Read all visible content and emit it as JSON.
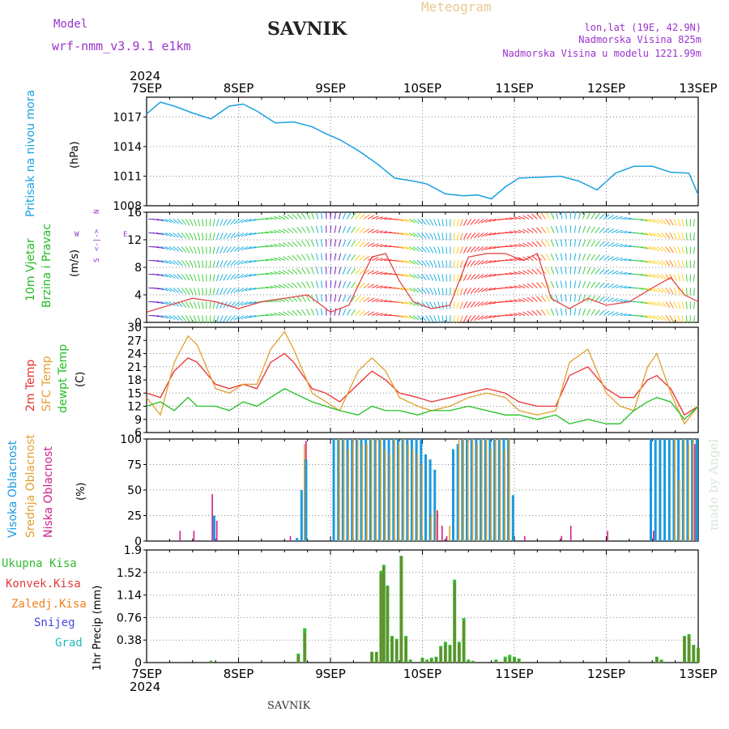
{
  "header": {
    "model_label": "Model",
    "model_name": "wrf-nmm_v3.9.1 e1km",
    "station": "SAVNIK",
    "product": "Meteogram",
    "lonlat": "lon,lat (19E, 42.9N)",
    "elevation": "Nadmorska Visina 825m",
    "model_elevation": "Nadmorska Visina u modelu 1221.99m",
    "year_top": "2024",
    "year_bottom": "2024",
    "footer_station": "SAVNIK",
    "credit": "made by Angel"
  },
  "colors": {
    "pressure": "#1aa0e0",
    "wind_label": "#22bb22",
    "temp2m": "#e83030",
    "sfc": "#e0a030",
    "dewpt": "#22c022",
    "cloud_high": "#1a9be0",
    "cloud_mid": "#e0a030",
    "cloud_low": "#d0208a",
    "total": "#33bb33",
    "conv": "#e03c3c",
    "frozen": "#f08020",
    "snow": "#4444dd",
    "grad": "#22bbbb",
    "accent": "#9933cc"
  },
  "x_axis_dates": [
    "7SEP",
    "8SEP",
    "9SEP",
    "10SEP",
    "11SEP",
    "12SEP",
    "13SEP"
  ],
  "chart_data": [
    {
      "type": "line",
      "title": "Pritisak na nivou mora",
      "ylabel": "(hPa)",
      "ylim": [
        1008,
        1019
      ],
      "yticks": [
        1008,
        1011,
        1014,
        1017
      ],
      "x_days": [
        0,
        0.15,
        0.3,
        0.5,
        0.7,
        0.9,
        1.05,
        1.2,
        1.4,
        1.6,
        1.8,
        1.95,
        2.1,
        2.3,
        2.5,
        2.7,
        2.9,
        3.05,
        3.25,
        3.45,
        3.6,
        3.75,
        3.9,
        4.05,
        4.3,
        4.5,
        4.7,
        4.9,
        5.1,
        5.3,
        5.5,
        5.7,
        5.9,
        6.0
      ],
      "series": [
        {
          "color_key": "pressure",
          "values": [
            1017.3,
            1018.5,
            1018.1,
            1017.4,
            1016.8,
            1018.1,
            1018.3,
            1017.6,
            1016.4,
            1016.5,
            1016.0,
            1015.3,
            1014.7,
            1013.6,
            1012.3,
            1010.8,
            1010.5,
            1010.2,
            1009.2,
            1009.0,
            1009.1,
            1008.7,
            1009.9,
            1010.8,
            1010.9,
            1011.0,
            1010.5,
            1009.6,
            1011.3,
            1012.0,
            1012.0,
            1011.4,
            1011.3,
            1009.1
          ]
        }
      ]
    },
    {
      "type": "line",
      "title": "10m Vjetar Brzina i Pravac",
      "ylabel": "(m/s)",
      "ylim": [
        0,
        16
      ],
      "yticks": [
        0,
        4,
        8,
        12,
        16
      ],
      "x_days": [
        0,
        0.25,
        0.5,
        0.75,
        1.0,
        1.25,
        1.5,
        1.75,
        2.0,
        2.2,
        2.45,
        2.6,
        2.75,
        2.9,
        3.1,
        3.3,
        3.5,
        3.7,
        3.9,
        4.1,
        4.25,
        4.4,
        4.6,
        4.8,
        5.0,
        5.25,
        5.5,
        5.7,
        5.85,
        6.0
      ],
      "series": [
        {
          "name": "Brzina",
          "color_key": "conv",
          "values": [
            1.5,
            2.5,
            3.5,
            3.0,
            2.0,
            3.0,
            3.5,
            4.0,
            1.5,
            2.5,
            9.5,
            10.0,
            6.0,
            3.0,
            2.0,
            2.5,
            9.5,
            10.0,
            10.0,
            9.0,
            10.0,
            3.5,
            2.0,
            3.5,
            2.5,
            3.0,
            5.0,
            6.5,
            4.0,
            3.0
          ]
        }
      ],
      "direction_legend": [
        "N",
        "W",
        "E",
        "S"
      ]
    },
    {
      "type": "line",
      "ylabel": "(C)",
      "ylim": [
        6,
        30
      ],
      "yticks": [
        6,
        9,
        12,
        15,
        18,
        21,
        24,
        27,
        30
      ],
      "x_days": [
        0,
        0.15,
        0.3,
        0.45,
        0.55,
        0.75,
        0.9,
        1.05,
        1.2,
        1.35,
        1.5,
        1.6,
        1.8,
        1.95,
        2.1,
        2.3,
        2.45,
        2.6,
        2.75,
        2.95,
        3.1,
        3.3,
        3.5,
        3.7,
        3.9,
        4.05,
        4.25,
        4.45,
        4.6,
        4.8,
        5.0,
        5.15,
        5.3,
        5.45,
        5.55,
        5.7,
        5.85,
        6.0
      ],
      "series": [
        {
          "name": "2m Temp",
          "color_key": "temp2m",
          "values": [
            15,
            14,
            20,
            23,
            22,
            17,
            16,
            17,
            16,
            22,
            24,
            22,
            16,
            15,
            13,
            17,
            20,
            18,
            15,
            14,
            13,
            14,
            15,
            16,
            15,
            13,
            12,
            12,
            19,
            21,
            16,
            14,
            14,
            18,
            19,
            16,
            10,
            12
          ]
        },
        {
          "name": "SFC Temp",
          "color_key": "sfc",
          "values": [
            14,
            10,
            22,
            28,
            26,
            16,
            15,
            17,
            17,
            25,
            29,
            25,
            15,
            13,
            11,
            20,
            23,
            20,
            14,
            12,
            11,
            12,
            14,
            15,
            14,
            11,
            10,
            11,
            22,
            25,
            15,
            12,
            11,
            21,
            24,
            15,
            8,
            12
          ]
        },
        {
          "name": "dewpt Temp",
          "color_key": "dewpt",
          "values": [
            12,
            13,
            11,
            14,
            12,
            12,
            11,
            13,
            12,
            14,
            16,
            15,
            13,
            12,
            11,
            10,
            12,
            11,
            11,
            10,
            11,
            11,
            12,
            11,
            10,
            10,
            9,
            10,
            8,
            9,
            8,
            8,
            11,
            13,
            14,
            13,
            9,
            12
          ]
        }
      ]
    },
    {
      "type": "bar",
      "ylabel": "(%)",
      "ylim": [
        0,
        100
      ],
      "yticks": [
        0,
        25,
        50,
        75,
        100
      ],
      "series_names": [
        "Visoka Oblacnost",
        "Srednja Oblacnost",
        "Niska Oblacnost"
      ],
      "color_keys": [
        "cloud_high",
        "cloud_mid",
        "cloud_low"
      ],
      "x_days": [
        0.35,
        0.5,
        0.65,
        0.7,
        0.75,
        1.55,
        1.65,
        1.7,
        1.72,
        1.75,
        2.05,
        2.1,
        2.15,
        2.2,
        2.25,
        2.3,
        2.35,
        2.4,
        2.45,
        2.5,
        2.55,
        2.6,
        2.65,
        2.7,
        2.75,
        2.8,
        2.85,
        2.9,
        2.95,
        3.0,
        3.05,
        3.1,
        3.15,
        3.2,
        3.25,
        3.3,
        3.35,
        3.4,
        3.45,
        3.5,
        3.55,
        3.6,
        3.65,
        3.7,
        3.75,
        3.8,
        3.85,
        3.9,
        3.95,
        4.0,
        4.1,
        4.5,
        4.6,
        5.0,
        5.5,
        5.55,
        5.6,
        5.65,
        5.7,
        5.75,
        5.8,
        5.85,
        5.9,
        5.95,
        6.0
      ],
      "values_high": [
        0,
        0,
        0,
        0,
        25,
        0,
        3,
        50,
        0,
        80,
        100,
        100,
        100,
        100,
        100,
        100,
        100,
        100,
        100,
        100,
        100,
        100,
        100,
        100,
        100,
        100,
        100,
        100,
        100,
        100,
        85,
        80,
        70,
        0,
        0,
        0,
        90,
        95,
        100,
        100,
        100,
        100,
        100,
        100,
        100,
        100,
        100,
        100,
        100,
        45,
        0,
        0,
        0,
        0,
        100,
        100,
        100,
        100,
        100,
        100,
        100,
        100,
        100,
        100,
        100
      ],
      "values_mid": [
        0,
        0,
        0,
        0,
        0,
        0,
        0,
        0,
        95,
        0,
        0,
        100,
        100,
        90,
        100,
        100,
        95,
        95,
        100,
        100,
        100,
        90,
        85,
        100,
        95,
        100,
        95,
        90,
        85,
        75,
        0,
        25,
        30,
        0,
        0,
        15,
        0,
        100,
        100,
        100,
        100,
        95,
        100,
        100,
        90,
        100,
        100,
        90,
        100,
        0,
        0,
        0,
        0,
        0,
        0,
        0,
        0,
        0,
        0,
        100,
        60,
        100,
        95,
        100,
        0
      ],
      "values_low": [
        10,
        10,
        0,
        46,
        20,
        5,
        0,
        0,
        98,
        0,
        0,
        0,
        0,
        0,
        0,
        0,
        0,
        0,
        0,
        0,
        0,
        0,
        0,
        0,
        0,
        0,
        0,
        0,
        0,
        0,
        0,
        0,
        30,
        15,
        5,
        0,
        0,
        0,
        0,
        0,
        0,
        0,
        0,
        0,
        0,
        0,
        0,
        0,
        0,
        0,
        5,
        5,
        15,
        10,
        10,
        0,
        0,
        0,
        0,
        0,
        0,
        0,
        0,
        95,
        0
      ]
    },
    {
      "type": "bar",
      "ylabel": "1hr Precip (mm)",
      "ylim": [
        0,
        1.9
      ],
      "yticks": [
        0,
        0.38,
        0.76,
        1.14,
        1.52,
        1.9
      ],
      "series_names": [
        "Ukupna Kisa",
        "Konvek.Kisa",
        "Zaledj.Kisa",
        "Snijeg",
        "Grad"
      ],
      "color_keys": [
        "total",
        "conv",
        "frozen",
        "snow",
        "grad"
      ],
      "x_days": [
        0.7,
        1.65,
        1.72,
        2.45,
        2.5,
        2.55,
        2.58,
        2.62,
        2.67,
        2.72,
        2.77,
        2.82,
        2.87,
        3.0,
        3.05,
        3.1,
        3.15,
        3.2,
        3.25,
        3.3,
        3.35,
        3.4,
        3.45,
        3.5,
        3.55,
        3.8,
        3.9,
        3.95,
        4.0,
        4.05,
        5.55,
        5.6,
        5.85,
        5.9,
        5.95,
        6.0
      ],
      "values_total": [
        0.03,
        0.15,
        0.58,
        0.18,
        0.18,
        1.55,
        1.65,
        1.3,
        0.45,
        0.4,
        1.8,
        0.45,
        0.05,
        0.08,
        0.05,
        0.08,
        0.1,
        0.28,
        0.35,
        0.3,
        1.4,
        0.35,
        0.75,
        0.05,
        0.03,
        0.05,
        0.1,
        0.13,
        0.1,
        0.07,
        0.1,
        0.05,
        0.45,
        0.48,
        0.3,
        0.25
      ],
      "values_conv": [
        0.03,
        0.12,
        0.5,
        0.18,
        0.18,
        1.5,
        1.62,
        1.28,
        0.42,
        0.38,
        1.8,
        0.42,
        0.03,
        0.06,
        0.03,
        0.06,
        0.08,
        0.25,
        0.3,
        0.28,
        1.35,
        0.32,
        0.7,
        0.03,
        0.02,
        0.03,
        0.05,
        0.08,
        0.06,
        0.04,
        0.08,
        0.03,
        0.43,
        0.45,
        0.28,
        0.25
      ]
    }
  ]
}
